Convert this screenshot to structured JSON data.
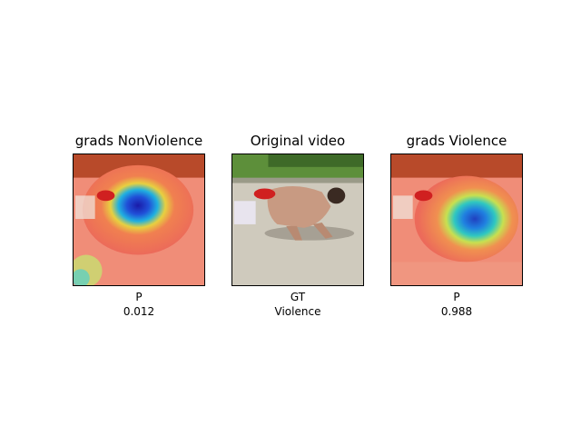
{
  "panels": [
    {
      "title": "grads NonViolence",
      "image_kind": "heatmap-overlay",
      "caption_line1": "P",
      "caption_line2": "0.012"
    },
    {
      "title": "Original video",
      "image_kind": "video-frame",
      "caption_line1": "GT",
      "caption_line2": "Violence"
    },
    {
      "title": "grads Violence",
      "image_kind": "heatmap-overlay",
      "caption_line1": "P",
      "caption_line2": "0.988"
    }
  ],
  "colors": {
    "heat_hot": "#e8564a",
    "heat_cold": "#1a1ab0",
    "ground": "#d7d3c8",
    "grass": "#5d8f3a"
  }
}
